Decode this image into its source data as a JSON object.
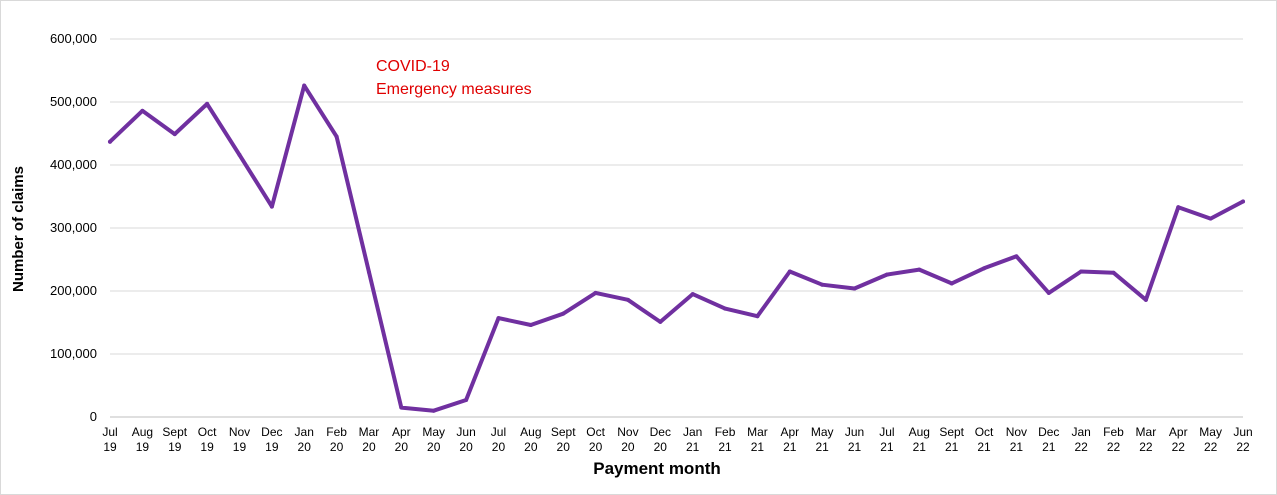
{
  "chart_data": {
    "type": "line",
    "title": "",
    "xlabel": "Payment month",
    "ylabel": "Number of claims",
    "ylim": [
      0,
      600000
    ],
    "yticks": [
      "0",
      "100,000",
      "200,000",
      "300,000",
      "400,000",
      "500,000",
      "600,000"
    ],
    "grid": "horizontal",
    "legend": "none",
    "categories": [
      [
        "Jul",
        "19"
      ],
      [
        "Aug",
        "19"
      ],
      [
        "Sept",
        "19"
      ],
      [
        "Oct",
        "19"
      ],
      [
        "Nov",
        "19"
      ],
      [
        "Dec",
        "19"
      ],
      [
        "Jan",
        "20"
      ],
      [
        "Feb",
        "20"
      ],
      [
        "Mar",
        "20"
      ],
      [
        "Apr",
        "20"
      ],
      [
        "May",
        "20"
      ],
      [
        "Jun",
        "20"
      ],
      [
        "Jul",
        "20"
      ],
      [
        "Aug",
        "20"
      ],
      [
        "Sept",
        "20"
      ],
      [
        "Oct",
        "20"
      ],
      [
        "Nov",
        "20"
      ],
      [
        "Dec",
        "20"
      ],
      [
        "Jan",
        "21"
      ],
      [
        "Feb",
        "21"
      ],
      [
        "Mar",
        "21"
      ],
      [
        "Apr",
        "21"
      ],
      [
        "May",
        "21"
      ],
      [
        "Jun",
        "21"
      ],
      [
        "Jul",
        "21"
      ],
      [
        "Aug",
        "21"
      ],
      [
        "Sept",
        "21"
      ],
      [
        "Oct",
        "21"
      ],
      [
        "Nov",
        "21"
      ],
      [
        "Dec",
        "21"
      ],
      [
        "Jan",
        "22"
      ],
      [
        "Feb",
        "22"
      ],
      [
        "Mar",
        "22"
      ],
      [
        "Apr",
        "22"
      ],
      [
        "May",
        "22"
      ],
      [
        "Jun",
        "22"
      ]
    ],
    "values": [
      437000,
      486000,
      449000,
      497000,
      416000,
      334000,
      526000,
      445000,
      230000,
      15000,
      10000,
      27000,
      157000,
      146000,
      164000,
      197000,
      186000,
      151000,
      195000,
      172000,
      160000,
      231000,
      210000,
      204000,
      226000,
      234000,
      212000,
      236000,
      255000,
      197000,
      231000,
      229000,
      186000,
      333000,
      315000,
      342000
    ],
    "annotation": {
      "lines": [
        "COVID-19",
        "Emergency measures"
      ],
      "color": "#e00000"
    },
    "colors": {
      "line": "#7030a0",
      "grid": "#d9d9d9",
      "axis": "#bfbfbf"
    }
  }
}
